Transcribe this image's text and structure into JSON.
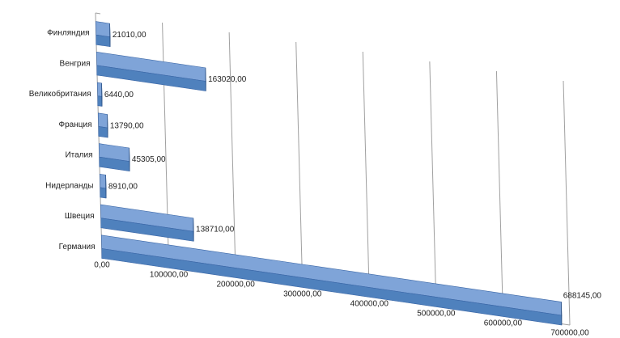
{
  "chart_data": {
    "type": "bar",
    "orientation": "horizontal",
    "style": "3d-perspective",
    "categories": [
      "Финляндия",
      "Венгрия",
      "Великобритания",
      "Франция",
      "Италия",
      "Нидерланды",
      "Швеция",
      "Германия"
    ],
    "values": [
      21010,
      163020,
      6440,
      13790,
      45305,
      8910,
      138710,
      688145
    ],
    "data_labels": [
      "21010,00",
      "163020,00",
      "6440,00",
      "13790,00",
      "45305,00",
      "8910,00",
      "138710,00",
      "688145,00"
    ],
    "x_ticks": [
      0,
      100000,
      200000,
      300000,
      400000,
      500000,
      600000,
      700000
    ],
    "x_tick_labels": [
      "0,00",
      "100000,00",
      "200000,00",
      "300000,00",
      "400000,00",
      "500000,00",
      "600000,00",
      "700000,00"
    ],
    "xlim": [
      0,
      700000
    ],
    "grid": true,
    "legend": "none",
    "title": "",
    "xlabel": "",
    "ylabel": "",
    "colors": {
      "bar_front": "#4f81bd",
      "bar_top": "#7fa4d8",
      "bar_side": "#2c5a99",
      "grid": "#a0a0a0",
      "text": "#222222"
    }
  }
}
